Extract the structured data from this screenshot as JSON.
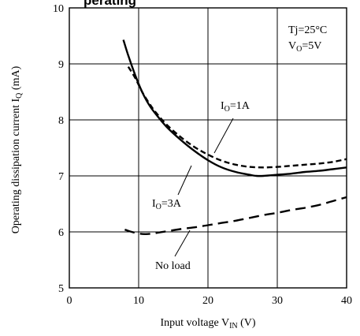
{
  "chart_data": {
    "type": "line",
    "title_fragment": "perating",
    "xlabel": {
      "main": "Input voltage V",
      "sub": "IN",
      "unit": " (V)"
    },
    "ylabel": {
      "main": "Operating dissipation current I",
      "sub": "Q",
      "unit": " (mA)"
    },
    "xlim": [
      0,
      40
    ],
    "ylim": [
      5,
      10
    ],
    "xticks": [
      "0",
      "10",
      "20",
      "30",
      "40"
    ],
    "yticks": [
      "5",
      "6",
      "7",
      "8",
      "9",
      "10"
    ],
    "grid": true,
    "conditions": [
      {
        "main": "Tj=25°C",
        "sub": "",
        "rest": ""
      },
      {
        "main": "V",
        "sub": "O",
        "rest": "=5V"
      }
    ],
    "series": [
      {
        "name": "IO=1A",
        "label_main": "I",
        "label_sub": "O",
        "label_rest": "=1A",
        "style": "short-dash",
        "x": [
          8.5,
          9.5,
          10.5,
          11.5,
          12.5,
          14,
          16,
          18,
          20,
          22,
          24,
          26,
          28,
          30,
          32,
          34,
          36,
          38,
          40
        ],
        "y": [
          8.95,
          8.75,
          8.5,
          8.3,
          8.13,
          7.92,
          7.7,
          7.52,
          7.38,
          7.27,
          7.2,
          7.16,
          7.15,
          7.16,
          7.18,
          7.2,
          7.22,
          7.25,
          7.3
        ]
      },
      {
        "name": "IO=3A",
        "label_main": "I",
        "label_sub": "O",
        "label_rest": "=3A",
        "style": "solid",
        "x": [
          7.8,
          8.5,
          9.5,
          10.5,
          11.5,
          12.5,
          14,
          16,
          18,
          20,
          22,
          24,
          26,
          27,
          28,
          30,
          32,
          34,
          36,
          38,
          40
        ],
        "y": [
          9.43,
          9.15,
          8.8,
          8.5,
          8.27,
          8.1,
          7.88,
          7.65,
          7.45,
          7.28,
          7.15,
          7.07,
          7.02,
          7.0,
          7.0,
          7.02,
          7.04,
          7.07,
          7.09,
          7.12,
          7.15
        ]
      },
      {
        "name": "No load",
        "label_main": "No load",
        "label_sub": "",
        "label_rest": "",
        "style": "long-dash",
        "x": [
          8,
          9,
          10,
          11,
          12,
          13,
          14,
          16,
          18,
          20,
          22,
          24,
          26,
          28,
          30,
          32,
          34,
          36,
          38,
          40
        ],
        "y": [
          6.04,
          6.0,
          5.97,
          5.96,
          5.97,
          5.99,
          6.01,
          6.05,
          6.08,
          6.12,
          6.16,
          6.2,
          6.25,
          6.3,
          6.34,
          6.39,
          6.43,
          6.48,
          6.55,
          6.62
        ]
      }
    ]
  }
}
